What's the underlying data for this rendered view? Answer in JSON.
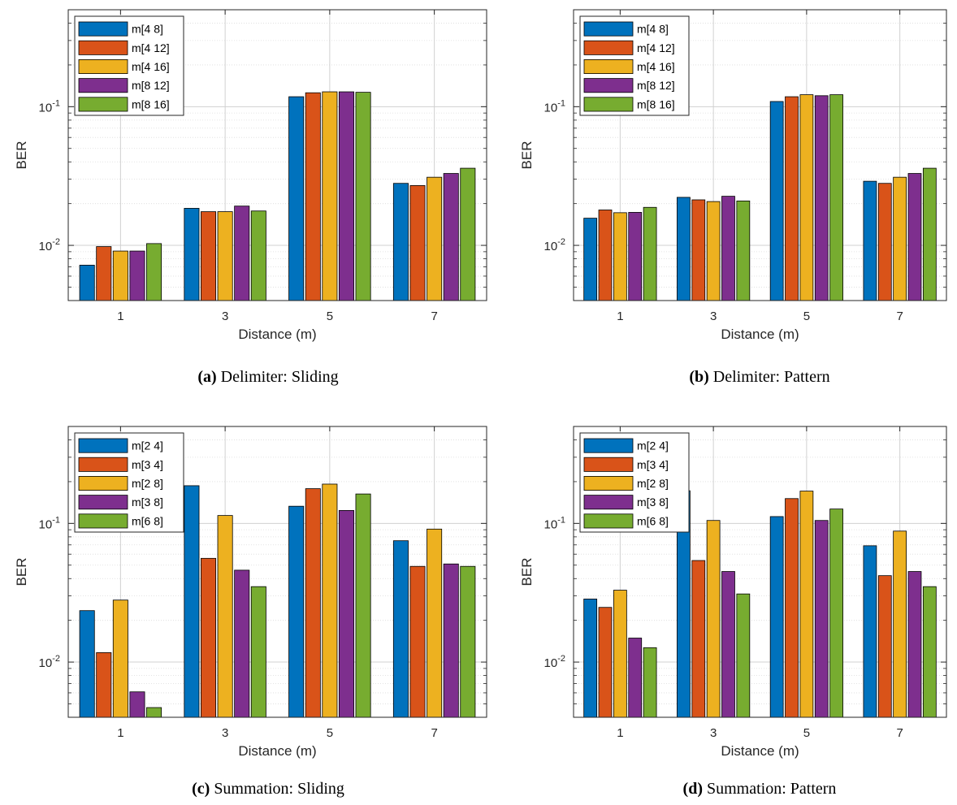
{
  "colors": [
    "#0072BD",
    "#D95319",
    "#EDB120",
    "#7E2F8E",
    "#77AC30"
  ],
  "chart_data": [
    {
      "type": "bar",
      "xlabel": "Distance (m)",
      "ylabel": "BER",
      "ylim": [
        0.004,
        0.5
      ],
      "yscale": "log",
      "ytick_labels": [
        "10-2",
        "10-1"
      ],
      "grid": true,
      "legend_position": "top-left",
      "categories": [
        "1",
        "3",
        "5",
        "7"
      ],
      "series": [
        {
          "name": "m[4 8]",
          "values": [
            0.0072,
            0.0185,
            0.118,
            0.028
          ]
        },
        {
          "name": "m[4 12]",
          "values": [
            0.0098,
            0.0175,
            0.126,
            0.027
          ]
        },
        {
          "name": "m[4 16]",
          "values": [
            0.0091,
            0.0175,
            0.128,
            0.031
          ]
        },
        {
          "name": "m[8 12]",
          "values": [
            0.0091,
            0.0192,
            0.128,
            0.033
          ]
        },
        {
          "name": "m[8 16]",
          "values": [
            0.0103,
            0.0177,
            0.127,
            0.036
          ]
        }
      ],
      "caption": {
        "label": "(a)",
        "text": " Delimiter: Sliding"
      }
    },
    {
      "type": "bar",
      "xlabel": "Distance (m)",
      "ylabel": "BER",
      "ylim": [
        0.004,
        0.5
      ],
      "yscale": "log",
      "ytick_labels": [
        "10-2",
        "10-1"
      ],
      "grid": true,
      "legend_position": "top-left",
      "categories": [
        "1",
        "3",
        "5",
        "7"
      ],
      "series": [
        {
          "name": "m[4 8]",
          "values": [
            0.0157,
            0.0222,
            0.109,
            0.029
          ]
        },
        {
          "name": "m[4 12]",
          "values": [
            0.018,
            0.0213,
            0.118,
            0.028
          ]
        },
        {
          "name": "m[4 16]",
          "values": [
            0.0172,
            0.0207,
            0.122,
            0.031
          ]
        },
        {
          "name": "m[8 12]",
          "values": [
            0.0173,
            0.0226,
            0.12,
            0.033
          ]
        },
        {
          "name": "m[8 16]",
          "values": [
            0.0188,
            0.0209,
            0.122,
            0.036
          ]
        }
      ],
      "caption": {
        "label": "(b)",
        "text": " Delimiter: Pattern"
      }
    },
    {
      "type": "bar",
      "xlabel": "Distance (m)",
      "ylabel": "BER",
      "ylim": [
        0.004,
        0.5
      ],
      "yscale": "log",
      "ytick_labels": [
        "10-2",
        "10-1"
      ],
      "grid": true,
      "legend_position": "top-left",
      "categories": [
        "1",
        "3",
        "5",
        "7"
      ],
      "series": [
        {
          "name": "m[2 4]",
          "values": [
            0.0235,
            0.187,
            0.133,
            0.075
          ]
        },
        {
          "name": "m[3 4]",
          "values": [
            0.0117,
            0.056,
            0.178,
            0.049
          ]
        },
        {
          "name": "m[2 8]",
          "values": [
            0.028,
            0.114,
            0.192,
            0.091
          ]
        },
        {
          "name": "m[3 8]",
          "values": [
            0.0061,
            0.046,
            0.124,
            0.051
          ]
        },
        {
          "name": "m[6 8]",
          "values": [
            0.0047,
            0.035,
            0.163,
            0.049
          ]
        }
      ],
      "caption": {
        "label": "(c)",
        "text": " Summation: Sliding"
      }
    },
    {
      "type": "bar",
      "xlabel": "Distance (m)",
      "ylabel": "BER",
      "ylim": [
        0.004,
        0.5
      ],
      "yscale": "log",
      "ytick_labels": [
        "10-2",
        "10-1"
      ],
      "grid": true,
      "legend_position": "top-left",
      "categories": [
        "1",
        "3",
        "5",
        "7"
      ],
      "series": [
        {
          "name": "m[2 4]",
          "values": [
            0.0285,
            0.172,
            0.112,
            0.069
          ]
        },
        {
          "name": "m[3 4]",
          "values": [
            0.0248,
            0.054,
            0.151,
            0.042
          ]
        },
        {
          "name": "m[2 8]",
          "values": [
            0.033,
            0.105,
            0.171,
            0.088
          ]
        },
        {
          "name": "m[3 8]",
          "values": [
            0.0149,
            0.045,
            0.105,
            0.045
          ]
        },
        {
          "name": "m[6 8]",
          "values": [
            0.0127,
            0.031,
            0.127,
            0.035
          ]
        }
      ],
      "caption": {
        "label": "(d)",
        "text": " Summation: Pattern"
      }
    }
  ]
}
